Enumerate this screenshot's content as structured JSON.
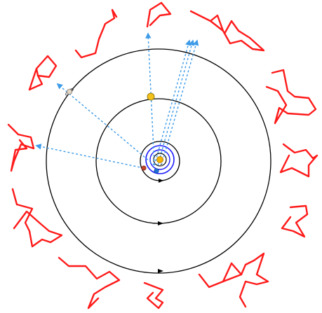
{
  "colors": {
    "background": "#ffffff",
    "orbit": "#000000",
    "inner_orbit_blue": "#1a1aff",
    "sight_line": "#3d9be8",
    "constellation": "#ff1a1a",
    "sun": "#f5b400",
    "earth": "#1f6fd6",
    "mars": "#c1442a",
    "jupiter": "#f2c21b",
    "saturn": "#e6d6c2"
  },
  "icons": [
    "sun-icon",
    "earth-icon",
    "mars-icon",
    "jupiter-icon",
    "saturn-icon",
    "orbit-direction-arrow-icon",
    "sight-line-arrow-icon"
  ]
}
